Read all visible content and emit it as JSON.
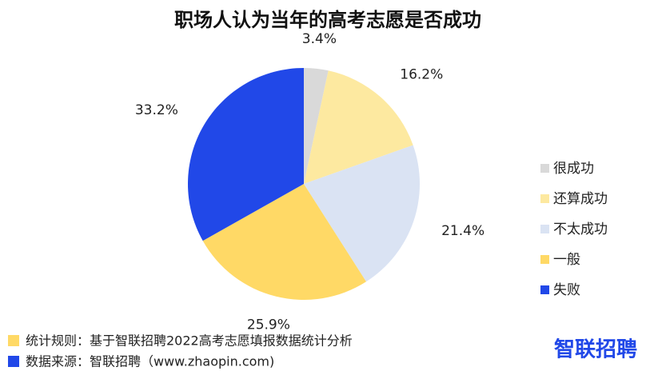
{
  "chart_data": {
    "type": "pie",
    "title": "职场人认为当年的高考志愿是否成功",
    "categories": [
      "很成功",
      "还算成功",
      "不太成功",
      "一般",
      "失败"
    ],
    "values": [
      3.4,
      16.2,
      21.4,
      25.9,
      33.2
    ],
    "value_labels": [
      "3.4%",
      "16.2%",
      "21.4%",
      "25.9%",
      "33.2%"
    ],
    "colors": [
      "#d9d9d9",
      "#fde9a0",
      "#dae3f3",
      "#ffd966",
      "#2148e8"
    ],
    "legend": "right"
  },
  "footer": {
    "rule": "统计规则：基于智联招聘2022高考志愿填报数据统计分析",
    "source": "数据来源：智联招聘（www.zhaopin.com)",
    "logo": "智联招聘"
  }
}
